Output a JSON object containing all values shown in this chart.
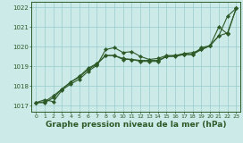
{
  "xlabel": "Graphe pression niveau de la mer (hPa)",
  "ylim": [
    1016.7,
    1022.3
  ],
  "xlim": [
    -0.5,
    23.5
  ],
  "yticks": [
    1017,
    1018,
    1019,
    1020,
    1021,
    1022
  ],
  "xticks": [
    0,
    1,
    2,
    3,
    4,
    5,
    6,
    7,
    8,
    9,
    10,
    11,
    12,
    13,
    14,
    15,
    16,
    17,
    18,
    19,
    20,
    21,
    22,
    23
  ],
  "bg_color": "#cceae8",
  "grid_color": "#99cccc",
  "line_color": "#2d5a27",
  "line1": [
    1017.15,
    1017.3,
    1017.2,
    1017.8,
    1018.1,
    1018.35,
    1018.75,
    1019.05,
    1019.85,
    1019.95,
    1019.7,
    1019.75,
    1019.5,
    1019.35,
    1019.4,
    1019.55,
    1019.55,
    1019.65,
    1019.7,
    1019.85,
    1020.05,
    1021.0,
    1020.65,
    1021.95
  ],
  "line2": [
    1017.15,
    1017.2,
    1017.5,
    1017.85,
    1018.2,
    1018.5,
    1018.9,
    1019.15,
    1019.55,
    1019.55,
    1019.4,
    1019.35,
    1019.3,
    1019.3,
    1019.3,
    1019.5,
    1019.55,
    1019.6,
    1019.6,
    1019.95,
    1020.05,
    1020.55,
    1020.7,
    1021.95
  ],
  "line3": [
    1017.15,
    1017.15,
    1017.4,
    1017.85,
    1018.2,
    1018.45,
    1018.85,
    1019.1,
    1019.55,
    1019.55,
    1019.35,
    1019.35,
    1019.25,
    1019.25,
    1019.25,
    1019.5,
    1019.5,
    1019.6,
    1019.6,
    1019.85,
    1020.05,
    1020.55,
    1021.55,
    1021.95
  ]
}
